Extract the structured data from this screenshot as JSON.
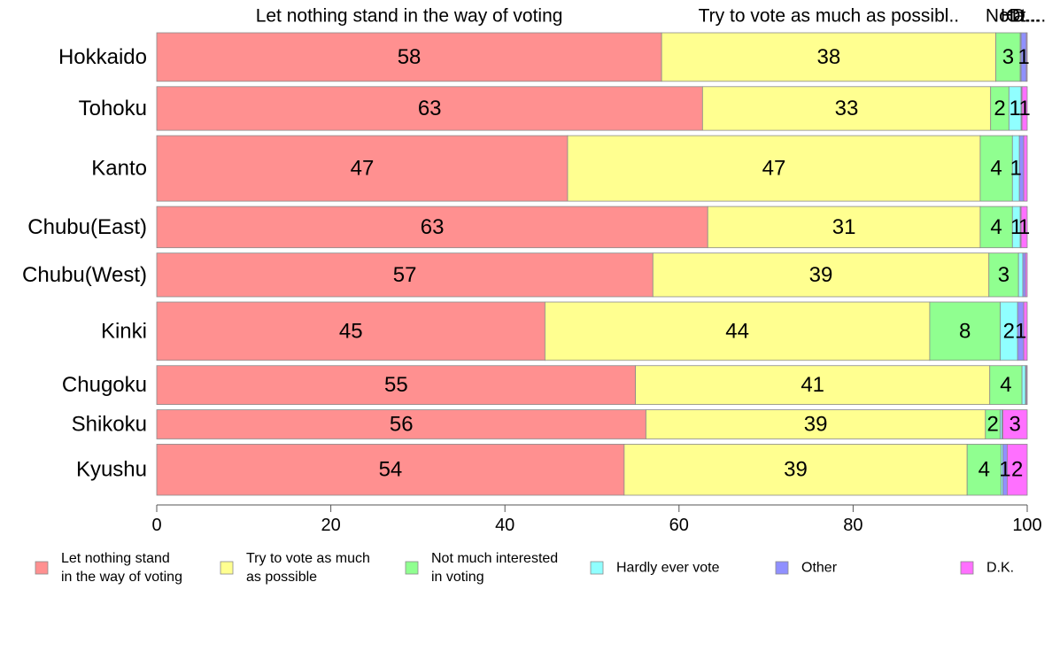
{
  "chart_data": {
    "type": "bar",
    "orientation": "horizontal",
    "stacked": true,
    "stack_mode": "proportional",
    "categories": [
      "Hokkaido",
      "Tohoku",
      "Kanto",
      "Chubu(East)",
      "Chubu(West)",
      "Kinki",
      "Chugoku",
      "Shikoku",
      "Kyushu"
    ],
    "bar_weights": [
      1.0,
      0.9,
      1.35,
      0.85,
      0.9,
      1.2,
      0.8,
      0.6,
      1.05
    ],
    "series": [
      {
        "name": "Let nothing stand in the way of voting",
        "color": "#FF9090",
        "values": [
          58,
          62.7,
          47.2,
          63.3,
          57.0,
          44.6,
          55.0,
          56.2,
          53.7
        ]
      },
      {
        "name": "Try to vote as much as possible",
        "color": "#FFFF90",
        "values": [
          38.4,
          33.1,
          47.4,
          31.3,
          38.6,
          44.2,
          40.7,
          39.0,
          39.4
        ]
      },
      {
        "name": "Not much interested in voting",
        "color": "#90FF90",
        "values": [
          2.8,
          2.1,
          3.7,
          3.7,
          3.4,
          8.1,
          3.7,
          1.7,
          3.9
        ]
      },
      {
        "name": "Hardly ever vote",
        "color": "#90FFFF",
        "values": [
          0.1,
          1.4,
          0.8,
          0.9,
          0.5,
          2.0,
          0.4,
          0.2,
          0.2
        ]
      },
      {
        "name": "Other",
        "color": "#9090FF",
        "values": [
          0.6,
          0.1,
          0.5,
          0.1,
          0.3,
          0.7,
          0.1,
          0.1,
          0.5
        ]
      },
      {
        "name": "D.K.",
        "color": "#FF70FF",
        "values": [
          0.1,
          0.6,
          0.4,
          0.7,
          0.2,
          0.4,
          0.1,
          2.8,
          2.3
        ]
      }
    ],
    "value_labels": [
      [
        "58",
        "38",
        "3",
        "",
        "1",
        ""
      ],
      [
        "63",
        "33",
        "2",
        "1",
        "",
        "1"
      ],
      [
        "47",
        "47",
        "4",
        "1",
        "",
        ""
      ],
      [
        "63",
        "31",
        "4",
        "1",
        "",
        "1"
      ],
      [
        "57",
        "39",
        "3",
        "",
        "",
        ""
      ],
      [
        "45",
        "44",
        "8",
        "2",
        "1",
        ""
      ],
      [
        "55",
        "41",
        "4",
        "",
        "",
        ""
      ],
      [
        "56",
        "39",
        "2",
        "",
        "",
        "3"
      ],
      [
        "54",
        "39",
        "4",
        "",
        "1",
        "2"
      ]
    ],
    "top_labels": [
      "Let nothing stand in the way of voting",
      "Try to vote as much as possibl..",
      "Not...",
      "Ha...",
      "Ot...",
      "D...."
    ],
    "legend_labels": [
      [
        "Let nothing stand",
        "in the way of voting"
      ],
      [
        "Try to vote as much",
        "as possible"
      ],
      [
        "Not much interested",
        "in voting"
      ],
      [
        "Hardly ever vote"
      ],
      [
        "Other"
      ],
      [
        "D.K."
      ]
    ],
    "xlim": [
      0,
      100
    ],
    "x_ticks": [
      0,
      20,
      40,
      60,
      80,
      100
    ],
    "legend_position": "bottom",
    "grid": false
  }
}
